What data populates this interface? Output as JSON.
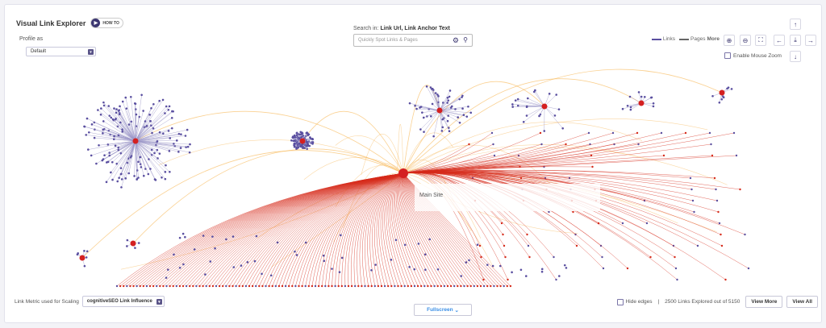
{
  "header": {
    "title": "Visual Link Explorer",
    "howto_label": "HOW TO"
  },
  "profile": {
    "label": "Profile as",
    "value": "Default"
  },
  "search": {
    "label_prefix": "Search in:",
    "label_fields": "Link Url, Link Anchor Text",
    "placeholder": "Quickly Spot Links & Pages"
  },
  "legend": {
    "links": "Links",
    "pages": "Pages",
    "more": "More"
  },
  "controls": {
    "enable_mouse_zoom": "Enable Mouse Zoom"
  },
  "graph": {
    "main_label": "Main Site",
    "colors": {
      "node": "#5a4fa0",
      "hub": "#d42020",
      "link": "#d52a1a",
      "arc": "#f7b24a",
      "edge": "#9c97c8"
    }
  },
  "footer": {
    "metric_label": "Link Metric used for Scaling",
    "metric_value": "cognitiveSEO Link Influence",
    "fullscreen": "Fullscreen",
    "hide_edges": "Hide edges",
    "separator": "|",
    "explored": "2500 Links Explored out of 5150",
    "view_more": "View More",
    "view_all": "View All"
  }
}
